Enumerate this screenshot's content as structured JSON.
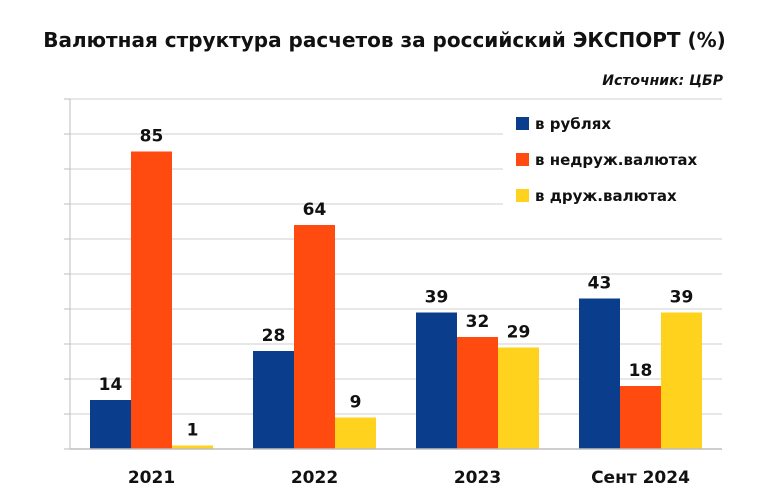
{
  "chart_data": {
    "type": "bar",
    "title": "Валютная структура расчетов за российский ЭКСПОРТ (%)",
    "source": "Источник: ЦБР",
    "categories": [
      "2021",
      "2022",
      "2023",
      "Сент 2024"
    ],
    "series": [
      {
        "name": "в рублях",
        "color": "#0a3e8c",
        "values": [
          14,
          28,
          39,
          43
        ]
      },
      {
        "name": "в недруж.валютах",
        "color": "#ff4a10",
        "values": [
          85,
          64,
          32,
          18
        ]
      },
      {
        "name": "в друж.валютах",
        "color": "#ffd21e",
        "values": [
          1,
          9,
          29,
          39
        ]
      }
    ],
    "ylim": [
      0,
      100
    ],
    "grid": true,
    "legend_position": "top-right"
  }
}
